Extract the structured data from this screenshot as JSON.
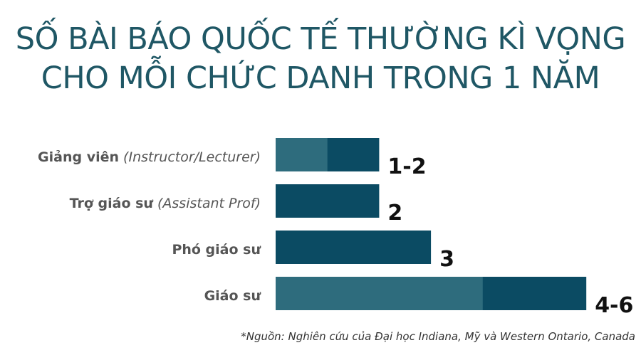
{
  "title_lines": [
    "SỐ BÀI BÁO QUỐC TẾ THƯỜNG KÌ VỌNG",
    "CHO MỖI CHỨC DANH TRONG 1 NĂM"
  ],
  "source_note": "*Nguồn: Nghiên cứu của Đại học Indiana, Mỹ và Western Ontario, Canada",
  "colors": {
    "title": "#1f5765",
    "bar_dark": "#0b4b63",
    "bar_light": "#2e6c7d",
    "label": "#555555",
    "value": "#111111"
  },
  "chart_data": {
    "type": "bar",
    "orientation": "horizontal",
    "xlim": [
      0,
      6
    ],
    "grid": false,
    "categories": [
      {
        "label": "Giảng viên",
        "sublabel": "(Instructor/Lecturer)",
        "min": 1,
        "max": 2,
        "value_label": "1-2"
      },
      {
        "label": "Trợ giáo sư",
        "sublabel": "(Assistant Prof)",
        "min": 2,
        "max": 2,
        "value_label": "2"
      },
      {
        "label": "Phó giáo sư",
        "sublabel": "",
        "min": 3,
        "max": 3,
        "value_label": "3"
      },
      {
        "label": "Giáo sư",
        "sublabel": "",
        "min": 4,
        "max": 6,
        "value_label": "4-6"
      }
    ]
  }
}
